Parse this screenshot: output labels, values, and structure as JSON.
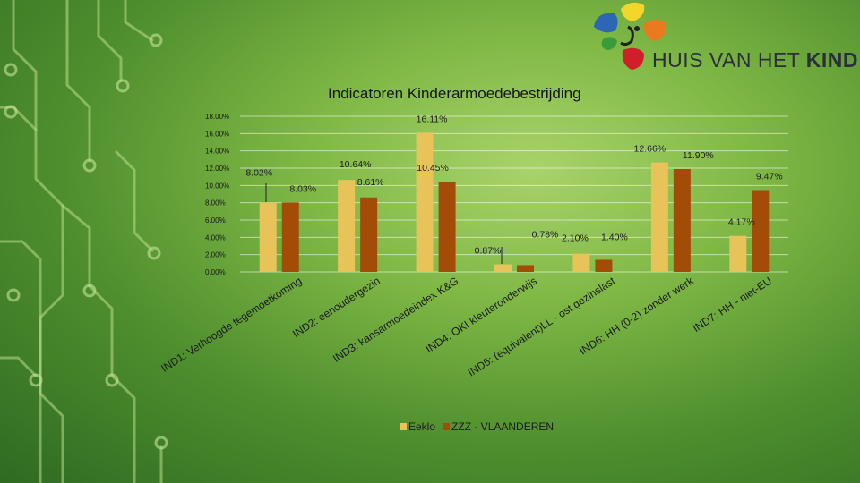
{
  "logo": {
    "text_light": "HUIS VAN HET ",
    "text_bold": "KIND"
  },
  "chart_data": {
    "type": "bar",
    "title": "Indicatoren Kinderarmoedebestrijding",
    "ylim": [
      0,
      18
    ],
    "yticks": [
      "0.00%",
      "2.00%",
      "4.00%",
      "6.00%",
      "8.00%",
      "10.00%",
      "12.00%",
      "14.00%",
      "16.00%",
      "18.00%"
    ],
    "categories": [
      "IND1: Verhoogde tegemoetkoming",
      "IND2: eenoudergezin",
      "IND3: kansarmoedeindex K&G",
      "IND4: OKI kleuteronderwijs",
      "IND5: (equivalent)LL - ost.gezinslast",
      "IND6: HH (0-2) zonder werk",
      "IND7: HH - niet-EU"
    ],
    "series": [
      {
        "name": "Eeklo",
        "color": "#e8c35a",
        "values": [
          8.02,
          10.64,
          16.11,
          0.87,
          2.1,
          12.66,
          4.17
        ],
        "labels": [
          "8.02%",
          "10.64%",
          "16.11%",
          "0.87%",
          "2.10%",
          "12.66%",
          "4.17%"
        ]
      },
      {
        "name": "ZZZ - VLAANDEREN",
        "color": "#a24c08",
        "values": [
          8.03,
          8.61,
          10.45,
          0.78,
          1.4,
          11.9,
          9.47
        ],
        "labels": [
          "8.03%",
          "8.61%",
          "10.45%",
          "0.78%",
          "1.40%",
          "11.90%",
          "9.47%"
        ]
      }
    ],
    "grid": true,
    "legend": "bottom"
  }
}
